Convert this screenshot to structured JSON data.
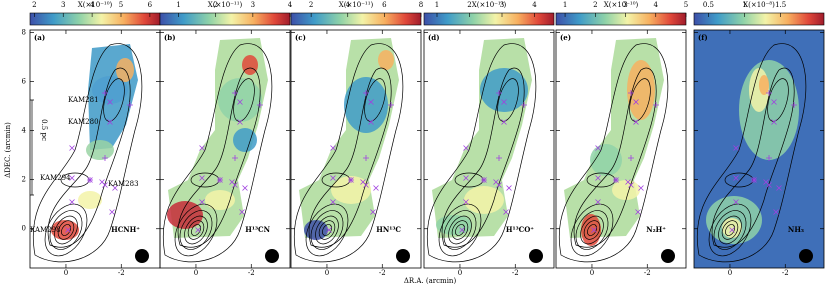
{
  "chart_data": {
    "type": "map-panels",
    "x_label": "ΔR.A. (arcmin)",
    "y_label": "ΔDEC. (arcmin)",
    "xlim": [
      1.3,
      -3.4
    ],
    "xticks": [
      0,
      -2
    ],
    "ylim": [
      -1.6,
      8.1
    ],
    "yticks": [
      0,
      2,
      4,
      6,
      8
    ],
    "scale_bar": "0.5 pc",
    "sources": [
      "KAM281",
      "KAM280",
      "KAM294",
      "KAM283",
      "KAM298"
    ],
    "panels": [
      {
        "label": "(a)",
        "molecule": "HCNH⁺",
        "colorbar_label": "X(×10⁻¹⁰)",
        "clim": [
          1.85,
          6.35
        ],
        "cticks": [
          2,
          3,
          4,
          5,
          6
        ]
      },
      {
        "label": "(b)",
        "molecule": "H¹³CN",
        "colorbar_label": "X(×10⁻¹¹)",
        "clim": [
          0.5,
          4
        ],
        "cticks": [
          1,
          2,
          3,
          4
        ]
      },
      {
        "label": "(c)",
        "molecule": "HN¹³C",
        "colorbar_label": "X(×10⁻¹¹)",
        "clim": [
          0.9,
          8
        ],
        "cticks": [
          2,
          4,
          6,
          8
        ]
      },
      {
        "label": "(d)",
        "molecule": "H¹³CO⁺",
        "colorbar_label": "X(×10⁻¹¹)",
        "clim": [
          0.6,
          4.6
        ],
        "cticks": [
          1,
          2,
          3,
          4
        ]
      },
      {
        "label": "(e)",
        "molecule": "N₂H⁺",
        "colorbar_label": "X(×10⁻¹⁰)",
        "clim": [
          0.7,
          5
        ],
        "cticks": [
          1,
          2,
          3,
          4,
          5
        ]
      },
      {
        "label": "(f)",
        "molecule": "NH₃",
        "colorbar_label": "X(×10⁻⁸)",
        "clim": [
          0.3,
          2.1
        ],
        "cticks": [
          0.5,
          1,
          1.5
        ]
      }
    ]
  }
}
